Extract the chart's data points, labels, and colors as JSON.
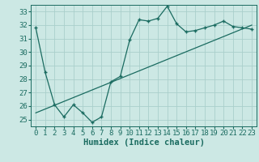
{
  "title": "",
  "xlabel": "Humidex (Indice chaleur)",
  "ylabel": "",
  "background_color": "#cce8e4",
  "grid_color": "#aacfcb",
  "line_color": "#1a6b60",
  "xlim": [
    -0.5,
    23.5
  ],
  "ylim": [
    24.5,
    33.5
  ],
  "yticks": [
    25,
    26,
    27,
    28,
    29,
    30,
    31,
    32,
    33
  ],
  "xticks": [
    0,
    1,
    2,
    3,
    4,
    5,
    6,
    7,
    8,
    9,
    10,
    11,
    12,
    13,
    14,
    15,
    16,
    17,
    18,
    19,
    20,
    21,
    22,
    23
  ],
  "line1_x": [
    0,
    1,
    2,
    3,
    4,
    5,
    6,
    7,
    8,
    9,
    10,
    11,
    12,
    13,
    14,
    15,
    16,
    17,
    18,
    19,
    20,
    21,
    22,
    23
  ],
  "line1_y": [
    31.8,
    28.5,
    26.1,
    25.2,
    26.1,
    25.5,
    24.8,
    25.2,
    27.8,
    28.2,
    30.9,
    32.4,
    32.3,
    32.5,
    33.4,
    32.1,
    31.5,
    31.6,
    31.8,
    32.0,
    32.3,
    31.9,
    31.8,
    31.7
  ],
  "line2_x": [
    0,
    23
  ],
  "line2_y": [
    25.5,
    32.0
  ],
  "font_size_label": 7.5,
  "font_size_tick": 6.5
}
